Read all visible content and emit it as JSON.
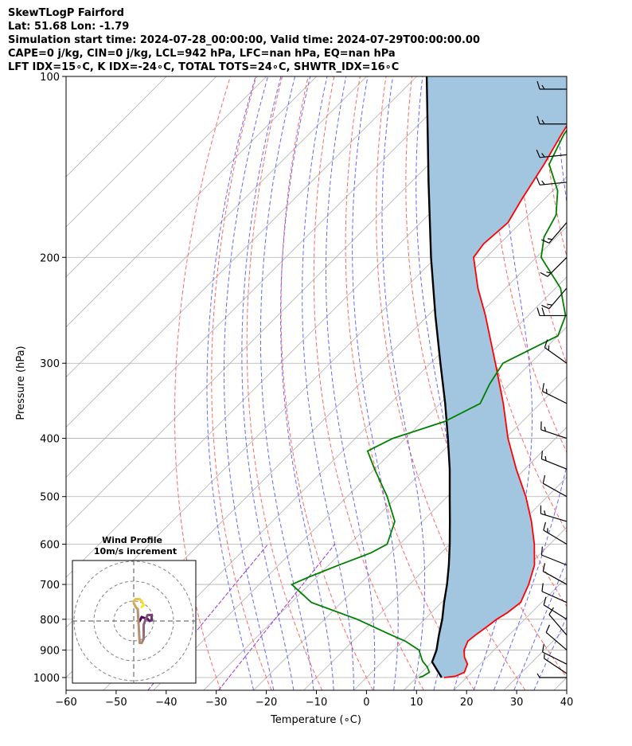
{
  "header": {
    "line1": "SkewTLogP Fairford",
    "line2": "Lat: 51.68   Lon: -1.79",
    "line3": "Simulation start time: 2024-07-28_00:00:00, Valid time: 2024-07-29T00:00:00.00",
    "line4": "CAPE=0 j/kg, CIN=0 j/kg, LCL=942 hPa, LFC=nan hPa, EQ=nan hPa",
    "line5": "LFT IDX=15∘C, K IDX=-24∘C, TOTAL TOTS=24∘C, SHWTR_IDX=16∘C"
  },
  "chart_data": {
    "type": "line",
    "subtype": "skew-t log-p",
    "xlabel": "Temperature (∘C)",
    "ylabel": "Pressure (hPa)",
    "xlim": [
      -60,
      40
    ],
    "ylim": [
      1050,
      100
    ],
    "y_scale": "log",
    "x_ticks": [
      -60,
      -50,
      -40,
      -30,
      -20,
      -10,
      0,
      10,
      20,
      30,
      40
    ],
    "x_tick_labels": [
      "−60",
      "−50",
      "−40",
      "−30",
      "−20",
      "−10",
      "0",
      "10",
      "20",
      "30",
      "40"
    ],
    "y_ticks": [
      1000,
      900,
      800,
      700,
      600,
      500,
      400,
      300,
      200,
      100
    ],
    "y_tick_labels": [
      "1000",
      "900",
      "800",
      "700",
      "600",
      "500",
      "400",
      "300",
      "200",
      "100"
    ],
    "grid": true,
    "colors": {
      "temperature": "#ff0000",
      "dewpoint": "#008000",
      "parcel": "#000000",
      "shade": "#a2c5e0",
      "dry_adiabat": "#ff6666",
      "moist_adiabat": "#6666ff",
      "mixing_ratio": "#9933cc",
      "isotherm": "#b0b0b0",
      "grid": "#b0b0b0"
    },
    "series": [
      {
        "key": "temperature",
        "p": [
          1000,
          995,
          980,
          950,
          925,
          900,
          870,
          850,
          820,
          800,
          780,
          750,
          700,
          650,
          600,
          550,
          500,
          450,
          400,
          350,
          300,
          275,
          250,
          225,
          200,
          190,
          175,
          160,
          140,
          125,
          110,
          100
        ],
        "t": [
          15.5,
          17.5,
          18.5,
          17.5,
          15.5,
          14.0,
          13.0,
          13.3,
          14.0,
          14.4,
          15.2,
          15.8,
          13.8,
          11.1,
          6.9,
          1.8,
          -4.3,
          -11.7,
          -19.5,
          -27.4,
          -37.0,
          -42.5,
          -48.5,
          -55.5,
          -62.5,
          -63.2,
          -62.6,
          -64.5,
          -67.0,
          -69.5,
          -72.0,
          -74.5
        ]
      },
      {
        "key": "dewpoint",
        "p": [
          1000,
          995,
          980,
          960,
          940,
          920,
          900,
          870,
          850,
          800,
          750,
          700,
          680,
          650,
          620,
          600,
          550,
          500,
          450,
          420,
          400,
          375,
          350,
          325,
          300,
          270,
          250,
          225,
          200,
          185,
          170,
          155,
          140,
          125,
          110,
          100
        ],
        "t": [
          10.5,
          11.0,
          11.5,
          10.0,
          8.0,
          6.5,
          5.0,
          0.5,
          -3.5,
          -13.5,
          -26.0,
          -33.5,
          -31.5,
          -28.0,
          -24.0,
          -22.5,
          -25.5,
          -32.0,
          -40.0,
          -45.0,
          -42.5,
          -35.5,
          -32.0,
          -34.0,
          -35.5,
          -30.0,
          -32.5,
          -39.0,
          -49.0,
          -52.5,
          -54.5,
          -59.0,
          -66.0,
          -69.0,
          -71.0,
          -72.0
        ]
      }
    ],
    "parcel_profile": {
      "p": [
        1000,
        942,
        900,
        850,
        800,
        750,
        700,
        650,
        600,
        550,
        500,
        450,
        400,
        350,
        300,
        250,
        200,
        150,
        100
      ],
      "t": [
        15.0,
        10.0,
        8.5,
        6.0,
        3.5,
        0.5,
        -2.5,
        -6.0,
        -10.0,
        -14.5,
        -19.5,
        -25.0,
        -31.5,
        -39.0,
        -48.0,
        -58.5,
        -71.0,
        -86.5,
        -108.0
      ]
    },
    "wind_barbs": [
      {
        "p": 1000,
        "u": -4,
        "v": 0,
        "speed_kt": 5
      },
      {
        "p": 985,
        "u": -3,
        "v": 2,
        "speed_kt": 5
      },
      {
        "p": 950,
        "u": -6,
        "v": 3,
        "speed_kt": 10
      },
      {
        "p": 900,
        "u": -7,
        "v": 6,
        "speed_kt": 10
      },
      {
        "p": 850,
        "u": -6,
        "v": 7,
        "speed_kt": 10
      },
      {
        "p": 800,
        "u": -8,
        "v": 5,
        "speed_kt": 10
      },
      {
        "p": 750,
        "u": -9,
        "v": 4,
        "speed_kt": 10
      },
      {
        "p": 700,
        "u": -9,
        "v": 5,
        "speed_kt": 10
      },
      {
        "p": 650,
        "u": -10,
        "v": 4,
        "speed_kt": 10
      },
      {
        "p": 600,
        "u": -10,
        "v": 6,
        "speed_kt": 15
      },
      {
        "p": 550,
        "u": -10,
        "v": 3,
        "speed_kt": 15
      },
      {
        "p": 500,
        "u": -9,
        "v": 5,
        "speed_kt": 10
      },
      {
        "p": 450,
        "u": -10,
        "v": 4,
        "speed_kt": 15
      },
      {
        "p": 400,
        "u": -9,
        "v": 3,
        "speed_kt": 15
      },
      {
        "p": 350,
        "u": -8,
        "v": 4,
        "speed_kt": 15
      },
      {
        "p": 300,
        "u": -7,
        "v": 5,
        "speed_kt": 15
      },
      {
        "p": 250,
        "u": -10,
        "v": 0,
        "speed_kt": 20
      },
      {
        "p": 225,
        "u": -6,
        "v": -7,
        "speed_kt": 15
      },
      {
        "p": 200,
        "u": -6,
        "v": -6,
        "speed_kt": 15
      },
      {
        "p": 175,
        "u": -6,
        "v": -7,
        "speed_kt": 15
      },
      {
        "p": 150,
        "u": -10,
        "v": -1,
        "speed_kt": 15
      },
      {
        "p": 135,
        "u": -10,
        "v": -1,
        "speed_kt": 15
      },
      {
        "p": 120,
        "u": -10,
        "v": 0,
        "speed_kt": 15
      },
      {
        "p": 105,
        "u": -10,
        "v": 0,
        "speed_kt": 15
      }
    ],
    "inset": {
      "title": "Wind Profile",
      "subtitle": "10m/s increment",
      "rings_ms": [
        10,
        20,
        30
      ],
      "hodograph_u": [
        1.5,
        2.0,
        3.5,
        4.0,
        4.5,
        4.5,
        4.5,
        3.5,
        3.0,
        2.5,
        2.5,
        2.5,
        2.0,
        1.5,
        1.0,
        0.5,
        0.0,
        0.0,
        0.5,
        1.5,
        2.0,
        2.5,
        2.0
      ],
      "hodograph_v": [
        0.0,
        1.0,
        0.5,
        0.0,
        0.2,
        1.0,
        1.5,
        1.5,
        0.5,
        -1.0,
        -3.0,
        -4.5,
        -5.5,
        -5.5,
        3.0,
        3.5,
        4.5,
        5.0,
        5.5,
        5.5,
        5.0,
        4.0,
        3.5
      ]
    }
  }
}
